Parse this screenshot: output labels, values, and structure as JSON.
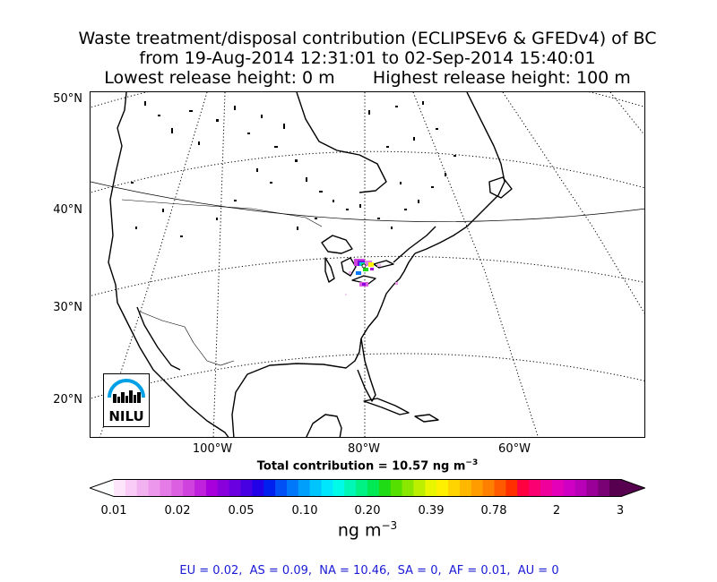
{
  "title": {
    "line1": "Waste treatment/disposal contribution (ECLIPSEv6 & GFEDv4) of BC",
    "line2": "from 19-Aug-2014 12:31:01 to 02-Sep-2014 15:40:01",
    "line3": "Lowest release height: 0 m       Highest release height: 100 m"
  },
  "map": {
    "lat_labels": [
      "50°N",
      "40°N",
      "30°N",
      "20°N"
    ],
    "lon_labels": [
      "100°W",
      "80°W",
      "60°W"
    ],
    "logo_text": "NILU"
  },
  "total_contribution": {
    "prefix": "Total contribution = 10.57 ng m",
    "exponent": "−3"
  },
  "colorbar": {
    "tick_labels": [
      "0.01",
      "0.02",
      "0.05",
      "0.10",
      "0.20",
      "0.39",
      "0.78",
      "2",
      "3"
    ],
    "unit_prefix": "ng m",
    "unit_exponent": "−3",
    "colors": [
      "#fde6fb",
      "#f8ccf6",
      "#f2b1f1",
      "#ec96ec",
      "#e47be7",
      "#dc5fe2",
      "#d042de",
      "#c021dd",
      "#a700dc",
      "#8a00dd",
      "#6a00df",
      "#4600e2",
      "#2200e8",
      "#0020f0",
      "#0050f6",
      "#0078fa",
      "#009ffc",
      "#00c5fd",
      "#00e7fd",
      "#00fbe8",
      "#00f7b6",
      "#00f184",
      "#00e954",
      "#1edb16",
      "#55e000",
      "#8ae800",
      "#bcf000",
      "#e8f600",
      "#fff000",
      "#ffd400",
      "#ffb800",
      "#ff9c00",
      "#ff7f00",
      "#ff5a00",
      "#ff2f00",
      "#ff0040",
      "#fa0070",
      "#f0009a",
      "#e400b8",
      "#cf00c4",
      "#b800b8",
      "#9a0098",
      "#7a0076",
      "#56004f"
    ]
  },
  "regions_line": "EU = 0.02,  AS = 0.09,  NA = 10.46,  SA = 0,  AF = 0.01,  AU = 0"
}
